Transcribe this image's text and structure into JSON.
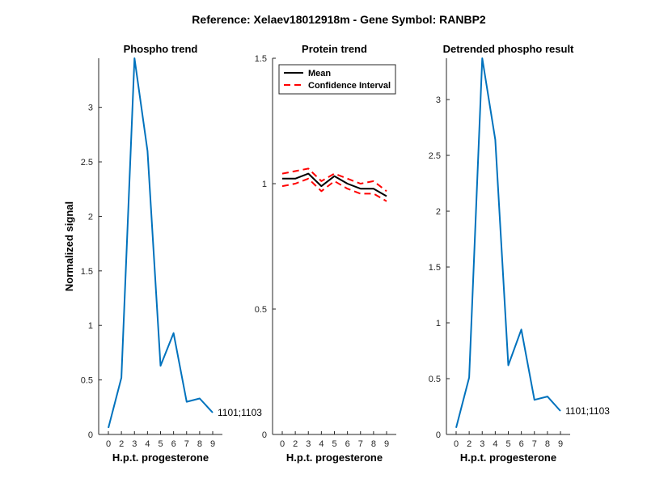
{
  "figure": {
    "title": "Reference:  Xelaev18012918m - Gene Symbol:  RANBP2",
    "background": "#ffffff"
  },
  "chart_data": [
    {
      "type": "line",
      "title": "Phospho trend",
      "xlabel": "H.p.t. progesterone",
      "ylabel": "Normalized signal",
      "x_ticks": [
        "0",
        "2",
        "3",
        "4",
        "5",
        "6",
        "7",
        "8",
        "9"
      ],
      "y_ticks": [
        0,
        0.5,
        1,
        1.5,
        2,
        2.5,
        3
      ],
      "ylim": [
        0,
        3.45
      ],
      "series": [
        {
          "color": "#0072BD",
          "values": [
            0.06,
            0.52,
            3.45,
            2.6,
            0.63,
            0.93,
            0.3,
            0.33,
            0.2
          ]
        }
      ],
      "annotation": "1101;1103"
    },
    {
      "type": "line",
      "title": "Protein trend",
      "xlabel": "H.p.t. progesterone",
      "ylabel": "",
      "x_ticks": [
        "0",
        "2",
        "3",
        "4",
        "5",
        "6",
        "7",
        "8",
        "9"
      ],
      "y_ticks": [
        0,
        0.5,
        1,
        1.5
      ],
      "ylim": [
        0,
        1.5
      ],
      "legend": {
        "placement": "top-left",
        "entries": [
          "Mean",
          "Confidence Interval"
        ]
      },
      "series": [
        {
          "name": "Mean",
          "color": "#000000",
          "style": "solid",
          "values": [
            1.02,
            1.02,
            1.04,
            0.99,
            1.03,
            1.0,
            0.98,
            0.98,
            0.95
          ]
        },
        {
          "name": "Confidence Interval",
          "color": "#FF0000",
          "style": "dashed",
          "values": [
            1.04,
            1.05,
            1.06,
            1.01,
            1.04,
            1.02,
            1.0,
            1.01,
            0.97
          ]
        },
        {
          "name": "Confidence Interval",
          "color": "#FF0000",
          "style": "dashed",
          "values": [
            0.99,
            1.0,
            1.02,
            0.97,
            1.01,
            0.98,
            0.96,
            0.96,
            0.93
          ]
        }
      ]
    },
    {
      "type": "line",
      "title": "Detrended phospho result",
      "xlabel": "H.p.t. progesterone",
      "ylabel": "",
      "x_ticks": [
        "0",
        "2",
        "3",
        "4",
        "5",
        "6",
        "7",
        "8",
        "9"
      ],
      "y_ticks": [
        0,
        0.5,
        1,
        1.5,
        2,
        2.5,
        3
      ],
      "ylim": [
        0,
        3.37
      ],
      "series": [
        {
          "color": "#0072BD",
          "values": [
            0.06,
            0.51,
            3.37,
            2.64,
            0.62,
            0.94,
            0.31,
            0.34,
            0.21
          ]
        }
      ],
      "annotation": "1101;1103"
    }
  ]
}
